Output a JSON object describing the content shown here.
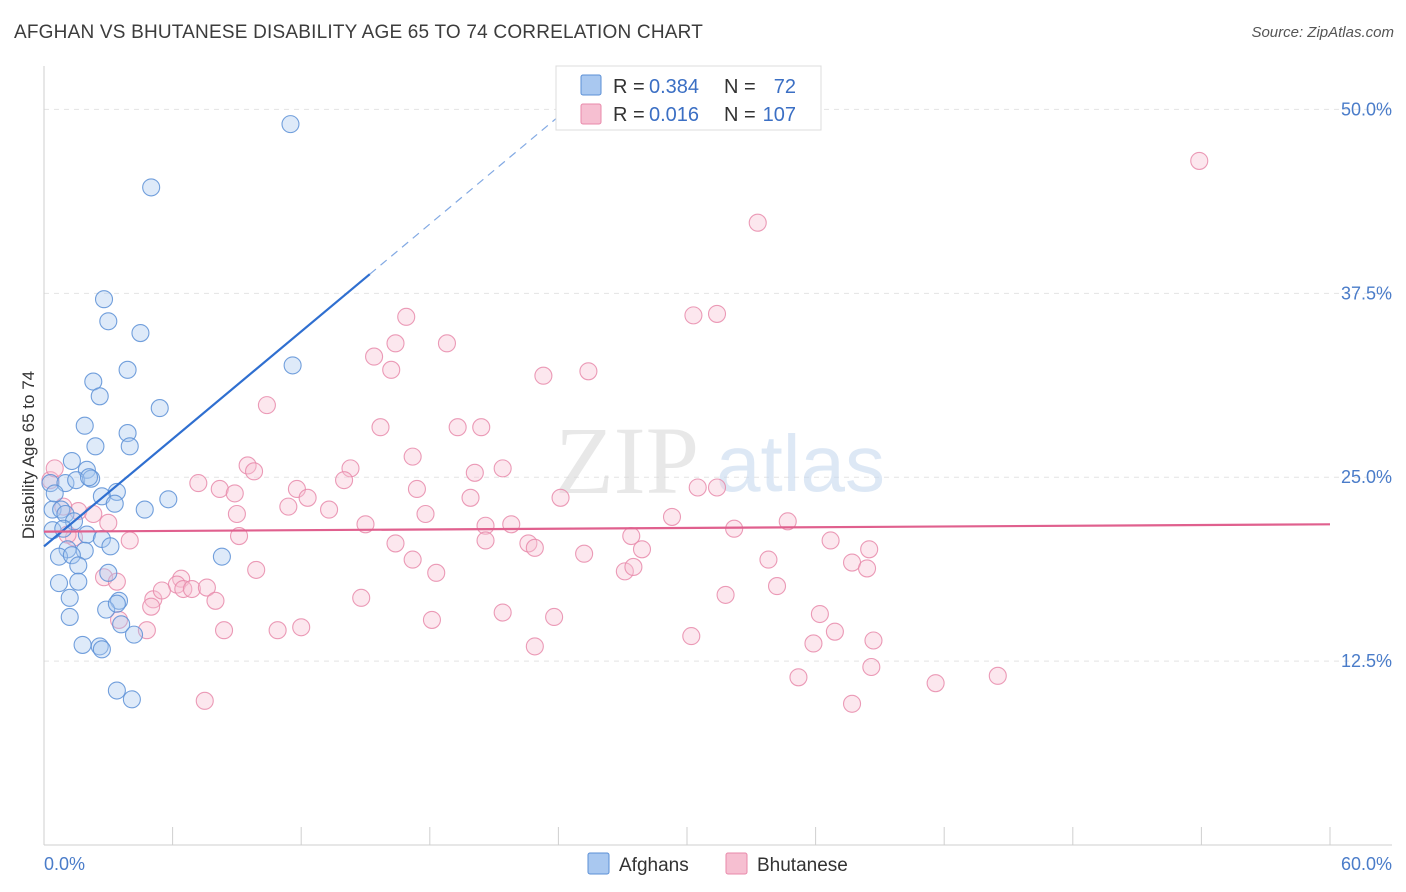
{
  "header": {
    "title": "AFGHAN VS BHUTANESE DISABILITY AGE 65 TO 74 CORRELATION CHART",
    "source": "Source: ZipAtlas.com"
  },
  "watermark": {
    "zip": "ZIP",
    "atlas": "atlas"
  },
  "colors": {
    "afghans_fill": "#a9c8f0",
    "afghans_stroke": "#5b8fd6",
    "afghans_line": "#2f6fd0",
    "bhutanese_fill": "#f6bfd1",
    "bhutanese_stroke": "#e889aa",
    "bhutanese_line": "#e0608e",
    "grid": "#e4e4e4",
    "axis_label": "#4a7cc9"
  },
  "legend": {
    "r_label": "R =",
    "n_label": "N =",
    "rows": [
      {
        "series": "Afghans",
        "r": "0.384",
        "n": "72"
      },
      {
        "series": "Bhutanese",
        "r": "0.016",
        "n": "107"
      }
    ]
  },
  "chart_data": {
    "type": "scatter",
    "title": "AFGHAN VS BHUTANESE DISABILITY AGE 65 TO 74 CORRELATION CHART",
    "xlabel": "",
    "ylabel": "Disability Age 65 to 74",
    "xlim": [
      0,
      60
    ],
    "ylim": [
      0,
      52
    ],
    "x_tick_labels": {
      "min": "0.0%",
      "max": "60.0%"
    },
    "y_ticks": [
      12.5,
      25.0,
      37.5,
      50.0
    ],
    "y_tick_labels": [
      "12.5%",
      "25.0%",
      "37.5%",
      "50.0%"
    ],
    "grid": true,
    "legend_position": "top-center",
    "series": [
      {
        "name": "Afghans",
        "r": 0.384,
        "n": 72,
        "trend": {
          "x0": 0,
          "y0": 20.3,
          "x1": 15.2,
          "y1": 38.8,
          "dash_to_x": 24.2
        },
        "points": [
          [
            11.5,
            49.0
          ],
          [
            5.0,
            44.7
          ],
          [
            2.8,
            37.1
          ],
          [
            3.0,
            35.6
          ],
          [
            4.5,
            34.8
          ],
          [
            3.9,
            32.3
          ],
          [
            11.6,
            32.6
          ],
          [
            2.3,
            31.5
          ],
          [
            2.6,
            30.5
          ],
          [
            5.4,
            29.7
          ],
          [
            1.9,
            28.5
          ],
          [
            3.9,
            28.0
          ],
          [
            1.3,
            26.1
          ],
          [
            2.4,
            27.1
          ],
          [
            4.0,
            27.1
          ],
          [
            2.0,
            25.5
          ],
          [
            0.3,
            24.6
          ],
          [
            1.0,
            24.6
          ],
          [
            1.5,
            24.8
          ],
          [
            2.2,
            24.9
          ],
          [
            3.4,
            24.0
          ],
          [
            2.7,
            23.7
          ],
          [
            5.8,
            23.5
          ],
          [
            0.4,
            22.8
          ],
          [
            0.8,
            22.8
          ],
          [
            1.0,
            22.5
          ],
          [
            3.3,
            23.2
          ],
          [
            4.7,
            22.8
          ],
          [
            1.4,
            22.0
          ],
          [
            0.4,
            21.4
          ],
          [
            0.9,
            21.5
          ],
          [
            2.0,
            21.1
          ],
          [
            2.7,
            20.8
          ],
          [
            1.1,
            20.1
          ],
          [
            1.9,
            20.0
          ],
          [
            3.1,
            20.3
          ],
          [
            0.7,
            19.6
          ],
          [
            1.3,
            19.7
          ],
          [
            8.3,
            19.6
          ],
          [
            1.6,
            19.0
          ],
          [
            3.0,
            18.5
          ],
          [
            0.7,
            17.8
          ],
          [
            1.6,
            17.9
          ],
          [
            3.5,
            16.6
          ],
          [
            1.2,
            16.8
          ],
          [
            2.9,
            16.0
          ],
          [
            3.4,
            16.4
          ],
          [
            1.2,
            15.5
          ],
          [
            3.6,
            15.0
          ],
          [
            4.2,
            14.3
          ],
          [
            1.8,
            13.6
          ],
          [
            2.6,
            13.5
          ],
          [
            2.7,
            13.3
          ],
          [
            3.4,
            10.5
          ],
          [
            4.1,
            9.9
          ],
          [
            0.5,
            23.9
          ],
          [
            2.1,
            25.0
          ]
        ]
      },
      {
        "name": "Bhutanese",
        "r": 0.016,
        "n": 107,
        "trend": {
          "x0": 0,
          "y0": 21.3,
          "x1": 60,
          "y1": 21.8
        },
        "points": [
          [
            53.9,
            46.5
          ],
          [
            33.3,
            42.3
          ],
          [
            16.4,
            34.1
          ],
          [
            16.9,
            35.9
          ],
          [
            18.8,
            34.1
          ],
          [
            30.3,
            36.0
          ],
          [
            31.4,
            36.1
          ],
          [
            16.2,
            32.3
          ],
          [
            15.4,
            33.2
          ],
          [
            23.3,
            31.9
          ],
          [
            25.4,
            32.2
          ],
          [
            10.4,
            29.9
          ],
          [
            15.7,
            28.4
          ],
          [
            19.3,
            28.4
          ],
          [
            20.4,
            28.4
          ],
          [
            17.2,
            26.4
          ],
          [
            9.5,
            25.8
          ],
          [
            14.3,
            25.6
          ],
          [
            9.8,
            25.4
          ],
          [
            20.1,
            25.3
          ],
          [
            21.4,
            25.6
          ],
          [
            14.0,
            24.8
          ],
          [
            7.2,
            24.6
          ],
          [
            8.2,
            24.2
          ],
          [
            11.8,
            24.2
          ],
          [
            17.4,
            24.2
          ],
          [
            19.9,
            23.6
          ],
          [
            30.5,
            24.3
          ],
          [
            31.4,
            24.3
          ],
          [
            8.9,
            23.9
          ],
          [
            12.3,
            23.6
          ],
          [
            24.1,
            23.6
          ],
          [
            11.4,
            23.0
          ],
          [
            13.3,
            22.8
          ],
          [
            9.0,
            22.5
          ],
          [
            17.8,
            22.5
          ],
          [
            29.3,
            22.3
          ],
          [
            15.0,
            21.8
          ],
          [
            20.6,
            21.7
          ],
          [
            21.8,
            21.8
          ],
          [
            32.2,
            21.5
          ],
          [
            34.7,
            22.0
          ],
          [
            1.6,
            22.7
          ],
          [
            2.3,
            22.5
          ],
          [
            0.9,
            23.0
          ],
          [
            1.4,
            20.9
          ],
          [
            4.0,
            20.7
          ],
          [
            9.1,
            21.0
          ],
          [
            16.4,
            20.5
          ],
          [
            20.6,
            20.7
          ],
          [
            27.4,
            21.0
          ],
          [
            17.2,
            19.4
          ],
          [
            22.6,
            20.5
          ],
          [
            22.9,
            20.2
          ],
          [
            25.2,
            19.8
          ],
          [
            27.9,
            20.1
          ],
          [
            36.7,
            20.7
          ],
          [
            33.8,
            19.4
          ],
          [
            37.7,
            19.2
          ],
          [
            38.5,
            20.1
          ],
          [
            38.4,
            18.8
          ],
          [
            27.1,
            18.6
          ],
          [
            27.5,
            18.9
          ],
          [
            9.9,
            18.7
          ],
          [
            18.3,
            18.5
          ],
          [
            6.4,
            18.1
          ],
          [
            2.8,
            18.2
          ],
          [
            3.4,
            17.9
          ],
          [
            6.2,
            17.7
          ],
          [
            6.5,
            17.4
          ],
          [
            6.9,
            17.4
          ],
          [
            7.6,
            17.5
          ],
          [
            5.1,
            16.7
          ],
          [
            8.0,
            16.6
          ],
          [
            14.8,
            16.8
          ],
          [
            31.8,
            17.0
          ],
          [
            34.2,
            17.6
          ],
          [
            36.2,
            15.7
          ],
          [
            21.4,
            15.8
          ],
          [
            23.8,
            15.5
          ],
          [
            18.1,
            15.3
          ],
          [
            3.5,
            15.3
          ],
          [
            4.8,
            14.6
          ],
          [
            5.0,
            16.2
          ],
          [
            8.4,
            14.6
          ],
          [
            10.9,
            14.6
          ],
          [
            12.0,
            14.8
          ],
          [
            30.2,
            14.2
          ],
          [
            35.9,
            13.7
          ],
          [
            36.9,
            14.5
          ],
          [
            38.7,
            13.9
          ],
          [
            22.9,
            13.5
          ],
          [
            38.6,
            12.1
          ],
          [
            35.2,
            11.4
          ],
          [
            41.6,
            11.0
          ],
          [
            44.5,
            11.5
          ],
          [
            7.5,
            9.8
          ],
          [
            37.7,
            9.6
          ],
          [
            0.3,
            24.8
          ],
          [
            0.5,
            25.6
          ],
          [
            1.1,
            21.1
          ],
          [
            3.0,
            21.9
          ],
          [
            5.5,
            17.3
          ]
        ]
      }
    ]
  }
}
